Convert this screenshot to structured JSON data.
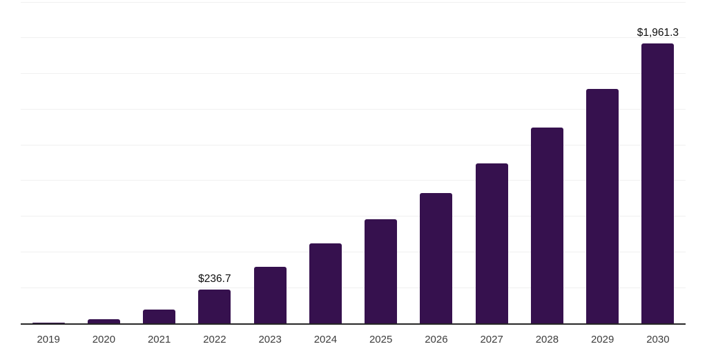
{
  "chart_data": {
    "type": "bar",
    "title": "",
    "xlabel": "",
    "ylabel": "",
    "categories": [
      "2019",
      "2020",
      "2021",
      "2022",
      "2023",
      "2024",
      "2025",
      "2026",
      "2027",
      "2028",
      "2029",
      "2030"
    ],
    "values": [
      5,
      28,
      95,
      236.7,
      397,
      558,
      727,
      913,
      1120,
      1370,
      1640,
      1961.3
    ],
    "point_labels": [
      "",
      "",
      "",
      "$236.7",
      "",
      "",
      "",
      "",
      "",
      "",
      "",
      "$1,961.3"
    ],
    "ylim": [
      0,
      2250
    ],
    "gridline_step": 250,
    "grid": true,
    "legend": false,
    "y_axis_labels_visible": false
  },
  "style": {
    "bar_color": "#36114E",
    "grid_color": "#f0f0f0",
    "axis_color": "#262626",
    "value_label_color": "#0d0d0d",
    "tick_label_color": "#3c3c3c",
    "background": "#ffffff"
  }
}
